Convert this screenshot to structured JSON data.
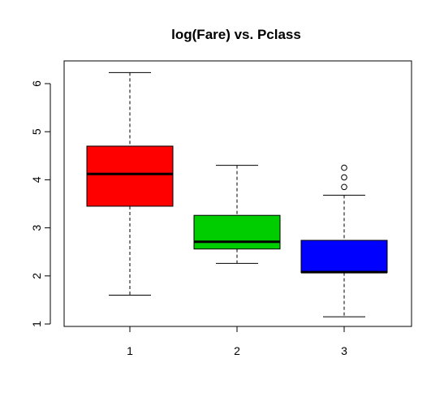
{
  "chart_data": {
    "type": "boxplot",
    "title": "log(Fare) vs. Pclass",
    "xlabel": "",
    "ylabel": "",
    "categories": [
      "1",
      "2",
      "3"
    ],
    "ylim": [
      1,
      6.5
    ],
    "yticks": [
      "1",
      "2",
      "3",
      "4",
      "5",
      "6"
    ],
    "series": [
      {
        "category": "1",
        "color": "#ff0000",
        "whisker_low": 1.6,
        "q1": 3.45,
        "median": 4.12,
        "q3": 4.7,
        "whisker_high": 6.23,
        "outliers": []
      },
      {
        "category": "2",
        "color": "#00cd00",
        "whisker_low": 2.26,
        "q1": 2.56,
        "median": 2.71,
        "q3": 3.26,
        "whisker_high": 4.3,
        "outliers": []
      },
      {
        "category": "3",
        "color": "#0000ff",
        "whisker_low": 1.15,
        "q1": 2.07,
        "median": 2.08,
        "q3": 2.74,
        "whisker_high": 3.68,
        "outliers": [
          3.85,
          4.05,
          4.25
        ]
      }
    ]
  }
}
